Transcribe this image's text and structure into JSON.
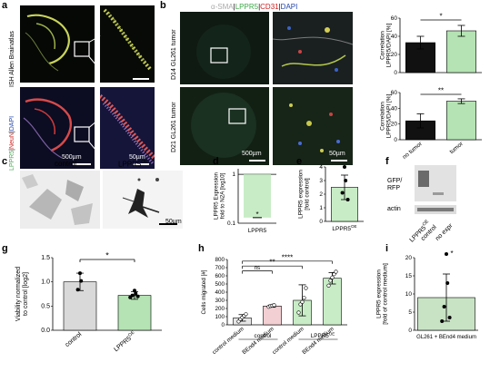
{
  "panels": {
    "a": {
      "letter": "a",
      "row_labels": [
        "ISH Allen Brainatlas",
        "LPPR5",
        "NeuN",
        "DAPI"
      ],
      "scale_big": "500µm",
      "scale_small": "50µm"
    },
    "b": {
      "letter": "b",
      "header": [
        "α-SMA",
        "LPPR5",
        "CD31",
        "DAPI"
      ],
      "row_labels": [
        "D14 GL261 tumor",
        "D21 GL261 tumor"
      ],
      "scale_big": "500µm",
      "scale_small": "50µm"
    },
    "c": {
      "letter": "c",
      "labels": [
        "control",
        "LPPR5"
      ],
      "superscript": "OE",
      "scale": "50µm"
    },
    "d": {
      "letter": "d"
    },
    "e": {
      "letter": "e"
    },
    "f": {
      "letter": "f",
      "blot_labels": [
        "GFP/",
        "RFP",
        "actin"
      ],
      "lanes": [
        "LPPR5",
        "control",
        "no expr"
      ],
      "superscript": "OE"
    },
    "g": {
      "letter": "g"
    },
    "h": {
      "letter": "h",
      "group_labels": [
        "control",
        "LPPR5"
      ],
      "group_superscript": "OE"
    },
    "i": {
      "letter": "i"
    }
  },
  "chart_data": [
    {
      "id": "b-top",
      "type": "bar",
      "categories": [
        "no tumor",
        "tumor"
      ],
      "values": [
        33,
        46
      ],
      "errors": [
        7,
        6
      ],
      "ylabel": "Correlation LPPR5/DAPI [%]",
      "ylim": [
        0,
        60
      ],
      "yticks": [
        "0",
        "20",
        "40",
        "60"
      ],
      "significance": "*",
      "colors": [
        "#111111",
        "#b5e3b3"
      ]
    },
    {
      "id": "b-bottom",
      "type": "bar",
      "categories": [
        "no tumor",
        "tumor"
      ],
      "values": [
        24,
        49
      ],
      "errors": [
        9,
        3
      ],
      "ylabel": "Correlation LPPR5/DAPI [%]",
      "ylim": [
        0,
        60
      ],
      "yticks": [
        "0",
        "20",
        "40",
        "60"
      ],
      "significance": "**",
      "colors": [
        "#111111",
        "#b5e3b3"
      ]
    },
    {
      "id": "d",
      "type": "bar",
      "scale": "log",
      "categories": [
        "LPPR5"
      ],
      "values": [
        0.13
      ],
      "ylabel": "LPPR5 Expression fold to N2A [log10]",
      "yticks": [
        "0.1",
        "1"
      ],
      "marker": "*",
      "colors": [
        "#c8edc6"
      ]
    },
    {
      "id": "e",
      "type": "bar",
      "categories": [
        "LPPR5"
      ],
      "cat_superscript": "OE",
      "values": [
        2.5
      ],
      "errors": [
        0.9
      ],
      "points": [
        4.0,
        3.0,
        2.1,
        1.6
      ],
      "ylabel": "LPPR5 expression [fold control]",
      "ylim": [
        0,
        4
      ],
      "yticks": [
        "0",
        "1",
        "2",
        "3",
        "4"
      ],
      "colors": [
        "#c8edc6"
      ]
    },
    {
      "id": "g",
      "type": "bar",
      "categories": [
        "control",
        "LPPR5"
      ],
      "cat_superscript": "OE",
      "values": [
        1.0,
        0.72
      ],
      "errors": [
        0.18,
        0.08
      ],
      "points": [
        [
          1.18,
          1.02,
          0.84
        ],
        [
          0.82,
          0.76,
          0.72,
          0.7,
          0.68
        ]
      ],
      "ylabel": "Viability normalized to control [log2]",
      "ylim": [
        0,
        1.5
      ],
      "yticks": [
        "0.0",
        "0.5",
        "1.0",
        "1.5"
      ],
      "significance": "*",
      "colors": [
        "#d9d9d9",
        "#b5e3b3"
      ]
    },
    {
      "id": "h",
      "type": "bar",
      "categories": [
        "control medium",
        "BEnd4 medium",
        "control medium",
        "BEnd4 medium"
      ],
      "values": [
        85,
        230,
        300,
        570
      ],
      "errors": [
        40,
        15,
        190,
        70
      ],
      "ylabel": "Cells migrated [#]",
      "ylim": [
        0,
        800
      ],
      "yticks": [
        "0",
        "100",
        "200",
        "300",
        "400",
        "500",
        "600",
        "700",
        "800"
      ],
      "significance": [
        {
          "label": "ns",
          "from": 0,
          "to": 1
        },
        {
          "label": "**",
          "from": 0,
          "to": 2
        },
        {
          "label": "****",
          "from": 0,
          "to": 3
        }
      ],
      "colors": [
        "#e6e6e6",
        "#f2cfd2",
        "#c8edc6",
        "#c8edc6"
      ]
    },
    {
      "id": "i",
      "type": "bar",
      "categories": [
        "GL261 + BEnd4 medium"
      ],
      "values": [
        9
      ],
      "errors": [
        6.5
      ],
      "points": [
        25,
        13,
        6.5,
        3.5,
        2.5
      ],
      "ylabel": "LPPR5 expression [fold of control medium]",
      "ylim": [
        0,
        20
      ],
      "yticks": [
        "0",
        "5",
        "10",
        "15",
        "20"
      ],
      "marker": "*",
      "colors": [
        "#c8e3c4"
      ]
    }
  ]
}
